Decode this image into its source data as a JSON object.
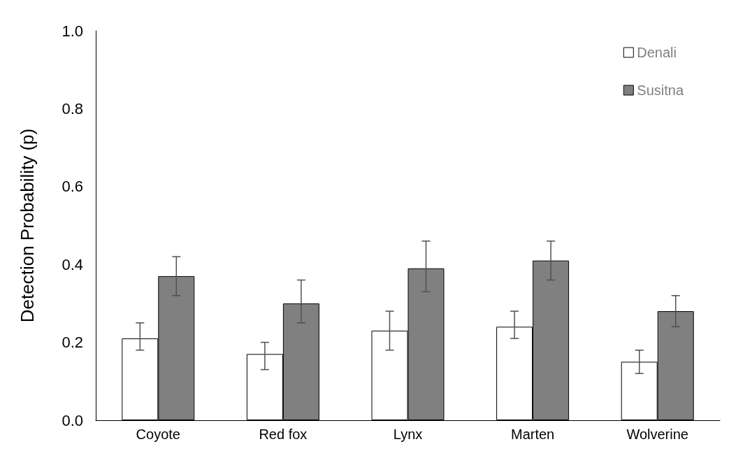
{
  "chart_data": {
    "type": "bar",
    "ylabel": "Detection Probability (p)",
    "categories": [
      "Coyote",
      "Red fox",
      "Lynx",
      "Marten",
      "Wolverine"
    ],
    "series": [
      {
        "name": "Denali",
        "color": "#ffffff",
        "values": [
          0.21,
          0.17,
          0.23,
          0.24,
          0.15
        ],
        "errors": [
          [
            0.18,
            0.25
          ],
          [
            0.13,
            0.2
          ],
          [
            0.18,
            0.28
          ],
          [
            0.21,
            0.28
          ],
          [
            0.12,
            0.18
          ]
        ]
      },
      {
        "name": "Susitna",
        "color": "#808080",
        "values": [
          0.37,
          0.3,
          0.39,
          0.41,
          0.28
        ],
        "errors": [
          [
            0.32,
            0.42
          ],
          [
            0.25,
            0.36
          ],
          [
            0.33,
            0.46
          ],
          [
            0.36,
            0.46
          ],
          [
            0.24,
            0.32
          ]
        ]
      }
    ],
    "ylim": [
      0,
      1
    ],
    "yticks": [
      {
        "value": 0,
        "label": "0.0"
      },
      {
        "value": 0.2,
        "label": "0.2"
      },
      {
        "value": 0.4,
        "label": "0.4"
      },
      {
        "value": 0.6,
        "label": "0.6"
      },
      {
        "value": 0.8,
        "label": "0.8"
      },
      {
        "value": 1,
        "label": "1.0"
      }
    ],
    "grid": false,
    "legend": "top right"
  }
}
